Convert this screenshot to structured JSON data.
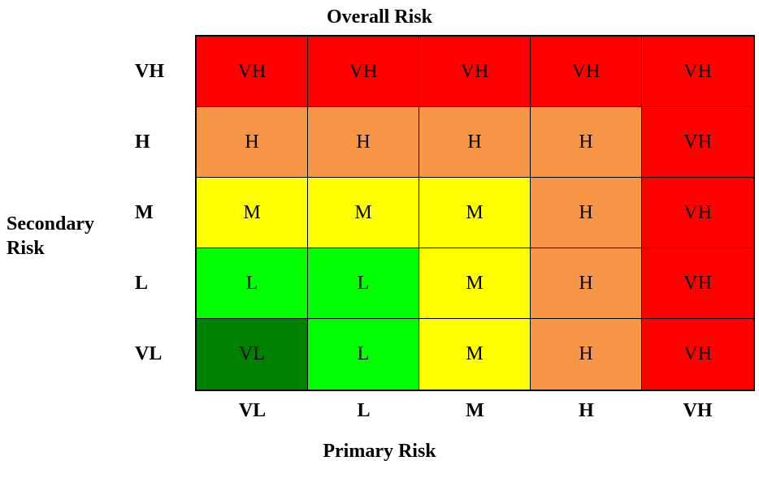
{
  "chart_data": {
    "type": "heatmap",
    "title": "Overall Risk",
    "xlabel": "Primary Risk",
    "ylabel": "Secondary Risk",
    "x_categories": [
      "VL",
      "L",
      "M",
      "H",
      "VH"
    ],
    "y_categories": [
      "VH",
      "H",
      "M",
      "L",
      "VL"
    ],
    "cells": [
      [
        "VH",
        "VH",
        "VH",
        "VH",
        "VH"
      ],
      [
        "H",
        "H",
        "H",
        "H",
        "VH"
      ],
      [
        "M",
        "M",
        "M",
        "H",
        "VH"
      ],
      [
        "L",
        "L",
        "M",
        "H",
        "VH"
      ],
      [
        "VL",
        "L",
        "M",
        "H",
        "VH"
      ]
    ],
    "colors": {
      "VH": "#ff0000",
      "H": "#f79646",
      "M": "#ffff00",
      "L": "#00ff00",
      "VL": "#008000"
    }
  }
}
